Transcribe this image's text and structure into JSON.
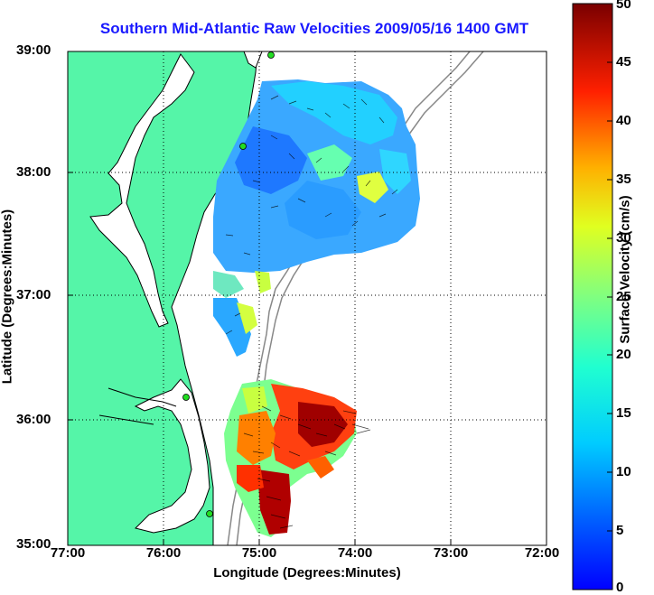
{
  "title": "Southern Mid-Atlantic Raw Velocities 2009/05/16 1400 GMT",
  "axes": {
    "xlabel": "Longitude (Degrees:Minutes)",
    "ylabel": "Latitude (Degrees:Minutes)",
    "x_ticks": [
      "77:00",
      "76:00",
      "75:00",
      "74:00",
      "73:00",
      "72:00"
    ],
    "y_ticks": [
      "39:00",
      "38:00",
      "37:00",
      "36:00",
      "35:00"
    ],
    "x_range_deg_west": [
      77,
      72
    ],
    "y_range_deg_north": [
      35,
      39
    ],
    "grid": "dotted"
  },
  "colorbar": {
    "label": "Surface Velocity (cm/s)",
    "ticks": [
      "50",
      "45",
      "40",
      "35",
      "30",
      "25",
      "20",
      "15",
      "10",
      "5",
      "0"
    ],
    "range": [
      0,
      50
    ],
    "colormap": "jet"
  },
  "colors": {
    "land": "#55f5a8",
    "coastline": "#000000",
    "title": "#1a1aff",
    "bathymetry": "#888888",
    "station": "#22dd22"
  },
  "stations": [
    {
      "lon": -75.05,
      "lat": 38.97
    },
    {
      "lon": -75.1,
      "lat": 38.25
    },
    {
      "lon": -75.7,
      "lat": 36.2
    },
    {
      "lon": -75.5,
      "lat": 35.3
    }
  ]
}
